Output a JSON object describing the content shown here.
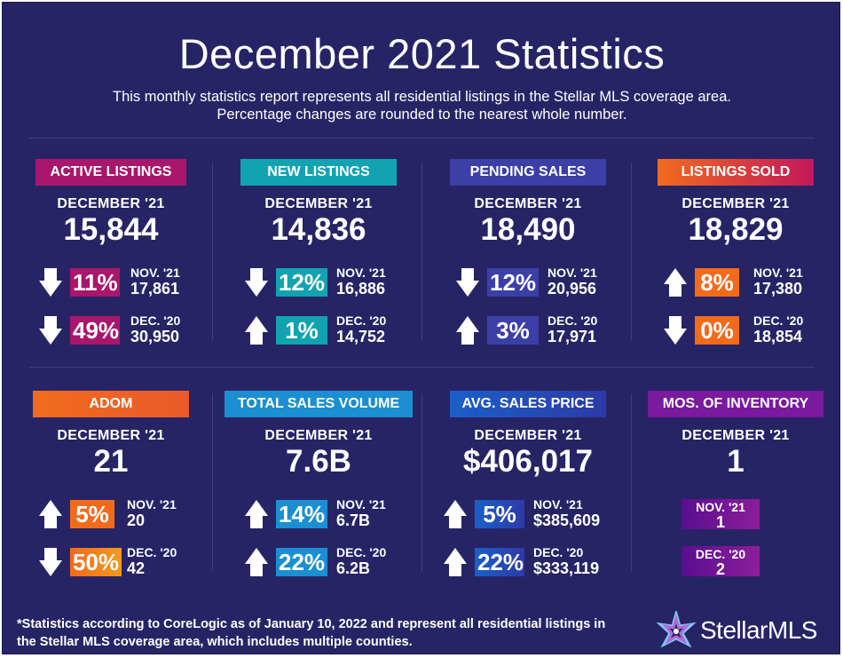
{
  "title": "December 2021 Statistics",
  "subtitle_line1": "This monthly statistics report represents all residential listings in the Stellar MLS coverage area.",
  "subtitle_line2": "Percentage changes are rounded to the nearest whole number.",
  "colors": {
    "background": "#272466",
    "magenta": "#a8176b",
    "teal": "#12a3b0",
    "blue": "#3c3fa6",
    "orange": "#f26b1d",
    "sky": "#1b8fd1",
    "purple": "#7a1a9e"
  },
  "panels": [
    {
      "label": "ACTIVE LISTINGS",
      "period": "DECEMBER '21",
      "value": "15,844",
      "rows": [
        {
          "direction": "down",
          "pct": "11%",
          "period": "NOV. '21",
          "value": "17,861"
        },
        {
          "direction": "down",
          "pct": "49%",
          "period": "DEC. '20",
          "value": "30,950"
        }
      ]
    },
    {
      "label": "NEW LISTINGS",
      "period": "DECEMBER '21",
      "value": "14,836",
      "rows": [
        {
          "direction": "down",
          "pct": "12%",
          "period": "NOV. '21",
          "value": "16,886"
        },
        {
          "direction": "up",
          "pct": "1%",
          "period": "DEC. '20",
          "value": "14,752"
        }
      ]
    },
    {
      "label": "PENDING SALES",
      "period": "DECEMBER '21",
      "value": "18,490",
      "rows": [
        {
          "direction": "down",
          "pct": "12%",
          "period": "NOV. '21",
          "value": "20,956"
        },
        {
          "direction": "up",
          "pct": "3%",
          "period": "DEC. '20",
          "value": "17,971"
        }
      ]
    },
    {
      "label": "LISTINGS SOLD",
      "period": "DECEMBER '21",
      "value": "18,829",
      "rows": [
        {
          "direction": "up",
          "pct": "8%",
          "period": "NOV. '21",
          "value": "17,380"
        },
        {
          "direction": "down",
          "pct": "0%",
          "period": "DEC. '20",
          "value": "18,854"
        }
      ]
    },
    {
      "label": "ADOM",
      "period": "DECEMBER '21",
      "value": "21",
      "rows": [
        {
          "direction": "up",
          "pct": "5%",
          "period": "NOV. '21",
          "value": "20"
        },
        {
          "direction": "down",
          "pct": "50%",
          "period": "DEC. '20",
          "value": "42"
        }
      ]
    },
    {
      "label": "TOTAL SALES VOLUME",
      "period": "DECEMBER '21",
      "value": "7.6B",
      "rows": [
        {
          "direction": "up",
          "pct": "14%",
          "period": "NOV. '21",
          "value": "6.7B"
        },
        {
          "direction": "up",
          "pct": "22%",
          "period": "DEC. '20",
          "value": "6.2B"
        }
      ]
    },
    {
      "label": "AVG. SALES PRICE",
      "period": "DECEMBER '21",
      "value": "$406,017",
      "rows": [
        {
          "direction": "up",
          "pct": "5%",
          "period": "NOV. '21",
          "value": "$385,609"
        },
        {
          "direction": "up",
          "pct": "22%",
          "period": "DEC. '20",
          "value": "$333,119"
        }
      ]
    },
    {
      "label": "MOS. OF INVENTORY",
      "period": "DECEMBER '21",
      "value": "1",
      "rows": [
        {
          "period": "NOV. '21",
          "value": "1"
        },
        {
          "period": "DEC. '20",
          "value": "2"
        }
      ]
    }
  ],
  "footnote_line1": "*Statistics according to CoreLogic as of January 10, 2022 and represent all residential listings in",
  "footnote_line2": "the Stellar MLS coverage area, which includes multiple counties.",
  "logo_text": "StellarMLS"
}
